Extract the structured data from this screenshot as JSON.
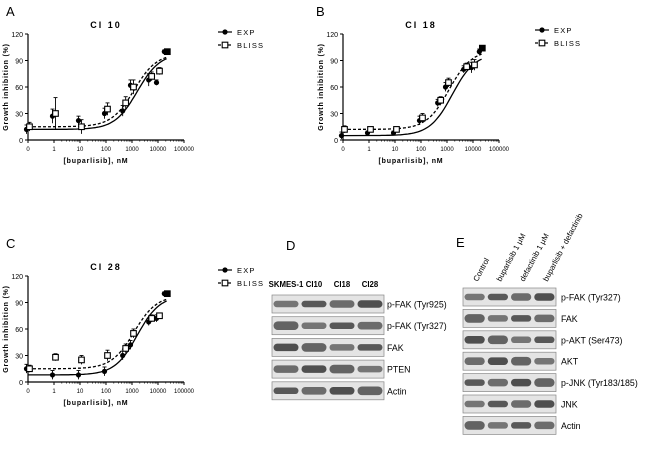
{
  "chart_data": [
    {
      "type": "scatter",
      "panel": "A",
      "title": "Cl 10",
      "xlabel": "[buparlisib], nM",
      "ylabel": "Growth inhibition (%)",
      "x_ticks": [
        "0",
        "1",
        "10",
        "100",
        "1000",
        "10000",
        "100000"
      ],
      "y_ticks": [
        "0",
        "30",
        "60",
        "90",
        "120"
      ],
      "xscale": "log",
      "ylim": [
        0,
        120
      ],
      "legend_position": "top-right",
      "series": [
        {
          "name": "EXP",
          "marker": "filled-circle",
          "line": "solid",
          "x": [
            0,
            1,
            10,
            100,
            500,
            1000,
            5000,
            10000,
            20000
          ],
          "y": [
            12,
            27,
            22,
            30,
            33,
            62,
            68,
            65,
            100
          ],
          "err": [
            5,
            8,
            5,
            6,
            6,
            6,
            7,
            3,
            2
          ]
        },
        {
          "name": "BLISS",
          "marker": "open-square",
          "line": "dashed",
          "x": [
            0,
            1,
            10,
            100,
            500,
            1000,
            5000,
            10000,
            20000
          ],
          "y": [
            15,
            30,
            15,
            35,
            42,
            60,
            72,
            78,
            100
          ],
          "err": [
            5,
            18,
            8,
            7,
            7,
            8,
            5,
            4,
            2
          ]
        }
      ]
    },
    {
      "type": "scatter",
      "panel": "B",
      "title": "Cl 18",
      "xlabel": "[buparlisib], nM",
      "ylabel": "Growth inhibition (%)",
      "x_ticks": [
        "0",
        "1",
        "10",
        "100",
        "1000",
        "10000",
        "100000"
      ],
      "y_ticks": [
        "0",
        "30",
        "60",
        "90",
        "120"
      ],
      "xscale": "log",
      "ylim": [
        0,
        120
      ],
      "legend_position": "top-right",
      "series": [
        {
          "name": "EXP",
          "marker": "filled-circle",
          "line": "solid",
          "x": [
            0,
            1,
            10,
            100,
            500,
            1000,
            5000,
            10000,
            20000
          ],
          "y": [
            5,
            8,
            8,
            22,
            42,
            60,
            80,
            82,
            100
          ],
          "err": [
            4,
            2,
            2,
            5,
            4,
            5,
            4,
            6,
            3
          ]
        },
        {
          "name": "BLISS",
          "marker": "open-square",
          "line": "dashed",
          "x": [
            0,
            1,
            10,
            100,
            500,
            1000,
            5000,
            10000,
            20000
          ],
          "y": [
            12,
            12,
            12,
            25,
            45,
            65,
            83,
            85,
            104
          ],
          "err": [
            4,
            2,
            2,
            5,
            4,
            5,
            4,
            6,
            3
          ]
        }
      ]
    },
    {
      "type": "scatter",
      "panel": "C",
      "title": "Cl 28",
      "xlabel": "[buparlisib], nM",
      "ylabel": "Growth inhibition (%)",
      "x_ticks": [
        "0",
        "1",
        "10",
        "100",
        "1000",
        "10000",
        "100000"
      ],
      "y_ticks": [
        "0",
        "30",
        "60",
        "90",
        "120"
      ],
      "xscale": "log",
      "ylim": [
        0,
        120
      ],
      "legend_position": "top-right",
      "series": [
        {
          "name": "EXP",
          "marker": "filled-circle",
          "line": "solid",
          "x": [
            0,
            1,
            10,
            100,
            500,
            1000,
            5000,
            10000,
            20000
          ],
          "y": [
            15,
            8,
            8,
            12,
            30,
            42,
            68,
            72,
            100
          ],
          "err": [
            5,
            5,
            5,
            5,
            5,
            5,
            4,
            4,
            2
          ]
        },
        {
          "name": "BLISS",
          "marker": "open-square",
          "line": "dashed",
          "x": [
            0,
            1,
            10,
            100,
            500,
            1000,
            5000,
            10000,
            20000
          ],
          "y": [
            15,
            28,
            25,
            30,
            38,
            55,
            72,
            75,
            100
          ],
          "err": [
            4,
            4,
            5,
            6,
            5,
            5,
            4,
            3,
            2
          ]
        }
      ]
    }
  ],
  "panel_d": {
    "letter": "D",
    "lanes": [
      "SKMES-1",
      "Cl10",
      "Cl18",
      "Cl28"
    ],
    "rows": [
      "p-FAK (Tyr925)",
      "p-FAK (Tyr327)",
      "FAK",
      "PTEN",
      "Actin"
    ]
  },
  "panel_e": {
    "letter": "E",
    "lanes": [
      "Control",
      "buparlisib 1 μM",
      "defactinib 1 μM",
      "buparlisib + defactinib"
    ],
    "rows": [
      "p-FAK (Tyr327)",
      "FAK",
      "p-AKT (Ser473)",
      "AKT",
      "p-JNK (Tyr183/185)",
      "JNK",
      "Actin"
    ]
  },
  "colors": {
    "line": "#000000",
    "blot_dark": "#2a2a2a",
    "blot_bg": "#dcdcdc"
  }
}
